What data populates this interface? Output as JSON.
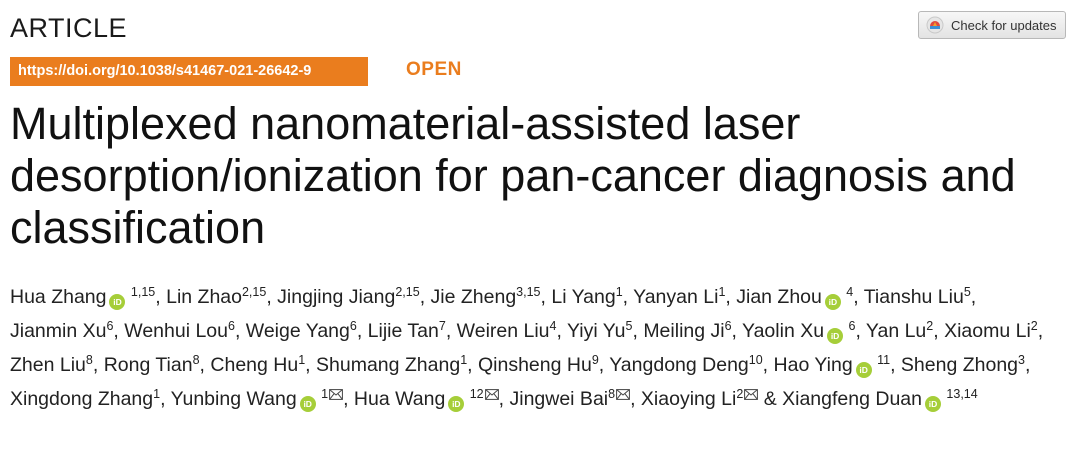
{
  "header": {
    "article_type": "ARTICLE",
    "doi": "https://doi.org/10.1038/s41467-021-26642-9",
    "access": "OPEN",
    "check_updates": "Check for updates"
  },
  "title": "Multiplexed nanomaterial-assisted laser desorption/ionization for pan-cancer diagnosis and classification",
  "colors": {
    "accent": "#ea7d1e",
    "orcid": "#a6ce39"
  },
  "authors": [
    {
      "name": "Hua Zhang",
      "aff": "1,15",
      "orcid": true,
      "corresponding": false
    },
    {
      "name": "Lin Zhao",
      "aff": "2,15",
      "orcid": false,
      "corresponding": false
    },
    {
      "name": "Jingjing Jiang",
      "aff": "2,15",
      "orcid": false,
      "corresponding": false
    },
    {
      "name": "Jie Zheng",
      "aff": "3,15",
      "orcid": false,
      "corresponding": false
    },
    {
      "name": "Li Yang",
      "aff": "1",
      "orcid": false,
      "corresponding": false
    },
    {
      "name": "Yanyan Li",
      "aff": "1",
      "orcid": false,
      "corresponding": false
    },
    {
      "name": "Jian Zhou",
      "aff": "4",
      "orcid": true,
      "corresponding": false
    },
    {
      "name": "Tianshu Liu",
      "aff": "5",
      "orcid": false,
      "corresponding": false
    },
    {
      "name": "Jianmin Xu",
      "aff": "6",
      "orcid": false,
      "corresponding": false
    },
    {
      "name": "Wenhui Lou",
      "aff": "6",
      "orcid": false,
      "corresponding": false
    },
    {
      "name": "Weige Yang",
      "aff": "6",
      "orcid": false,
      "corresponding": false
    },
    {
      "name": "Lijie Tan",
      "aff": "7",
      "orcid": false,
      "corresponding": false
    },
    {
      "name": "Weiren Liu",
      "aff": "4",
      "orcid": false,
      "corresponding": false
    },
    {
      "name": "Yiyi Yu",
      "aff": "5",
      "orcid": false,
      "corresponding": false
    },
    {
      "name": "Meiling Ji",
      "aff": "6",
      "orcid": false,
      "corresponding": false
    },
    {
      "name": "Yaolin Xu",
      "aff": "6",
      "orcid": true,
      "corresponding": false
    },
    {
      "name": "Yan Lu",
      "aff": "2",
      "orcid": false,
      "corresponding": false
    },
    {
      "name": "Xiaomu Li",
      "aff": "2",
      "orcid": false,
      "corresponding": false
    },
    {
      "name": "Zhen Liu",
      "aff": "8",
      "orcid": false,
      "corresponding": false
    },
    {
      "name": "Rong Tian",
      "aff": "8",
      "orcid": false,
      "corresponding": false
    },
    {
      "name": "Cheng Hu",
      "aff": "1",
      "orcid": false,
      "corresponding": false
    },
    {
      "name": "Shumang Zhang",
      "aff": "1",
      "orcid": false,
      "corresponding": false
    },
    {
      "name": "Qinsheng Hu",
      "aff": "9",
      "orcid": false,
      "corresponding": false
    },
    {
      "name": "Yangdong Deng",
      "aff": "10",
      "orcid": false,
      "corresponding": false
    },
    {
      "name": "Hao Ying",
      "aff": "11",
      "orcid": true,
      "corresponding": false
    },
    {
      "name": "Sheng Zhong",
      "aff": "3",
      "orcid": false,
      "corresponding": false
    },
    {
      "name": "Xingdong Zhang",
      "aff": "1",
      "orcid": false,
      "corresponding": false
    },
    {
      "name": "Yunbing Wang",
      "aff": "1",
      "orcid": true,
      "corresponding": true
    },
    {
      "name": "Hua Wang",
      "aff": "12",
      "orcid": true,
      "corresponding": true
    },
    {
      "name": "Jingwei Bai",
      "aff": "8",
      "orcid": false,
      "corresponding": true
    },
    {
      "name": "Xiaoying Li",
      "aff": "2",
      "orcid": false,
      "corresponding": true
    },
    {
      "name": "Xiangfeng Duan",
      "aff": "13,14",
      "orcid": true,
      "corresponding": false
    }
  ],
  "separators": {
    "comma": ", ",
    "ampersand": " & "
  },
  "icons": {
    "orcid": "orcid-icon",
    "mail": "envelope-icon",
    "updates": "check-updates-icon"
  },
  "orcid_label": "iD"
}
